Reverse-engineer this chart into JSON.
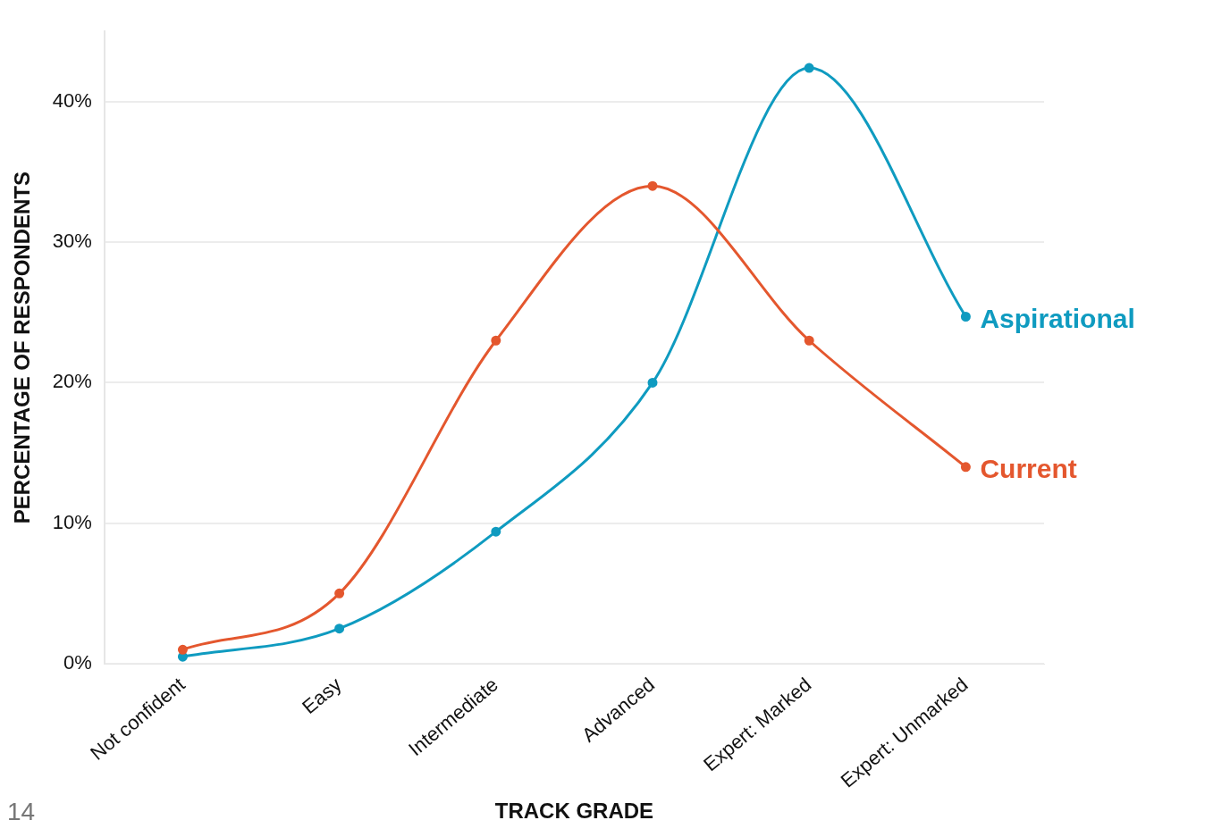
{
  "chart_data": {
    "type": "line",
    "xlabel": "TRACK GRADE",
    "ylabel": "PERCENTAGE OF RESPONDENTS",
    "categories": [
      "Not confident",
      "Easy",
      "Intermediate",
      "Advanced",
      "Expert: Marked",
      "Expert: Unmarked"
    ],
    "series": [
      {
        "name": "Current",
        "color": "#e4572e",
        "values": [
          1,
          5,
          23,
          34,
          23,
          14
        ]
      },
      {
        "name": "Aspirational",
        "color": "#0f9bc0",
        "values": [
          0.5,
          2.5,
          9.4,
          20,
          42.4,
          24.7
        ]
      }
    ],
    "ylim": [
      0,
      45
    ],
    "yticks": [
      {
        "value": 0,
        "label": "0%"
      },
      {
        "value": 10,
        "label": "10%"
      },
      {
        "value": 20,
        "label": "20%"
      },
      {
        "value": 30,
        "label": "30%"
      },
      {
        "value": 40,
        "label": "40%"
      }
    ],
    "grid": "y",
    "legend": false,
    "marker": "circle",
    "line_style": "solid",
    "annotations": [
      "14"
    ]
  }
}
